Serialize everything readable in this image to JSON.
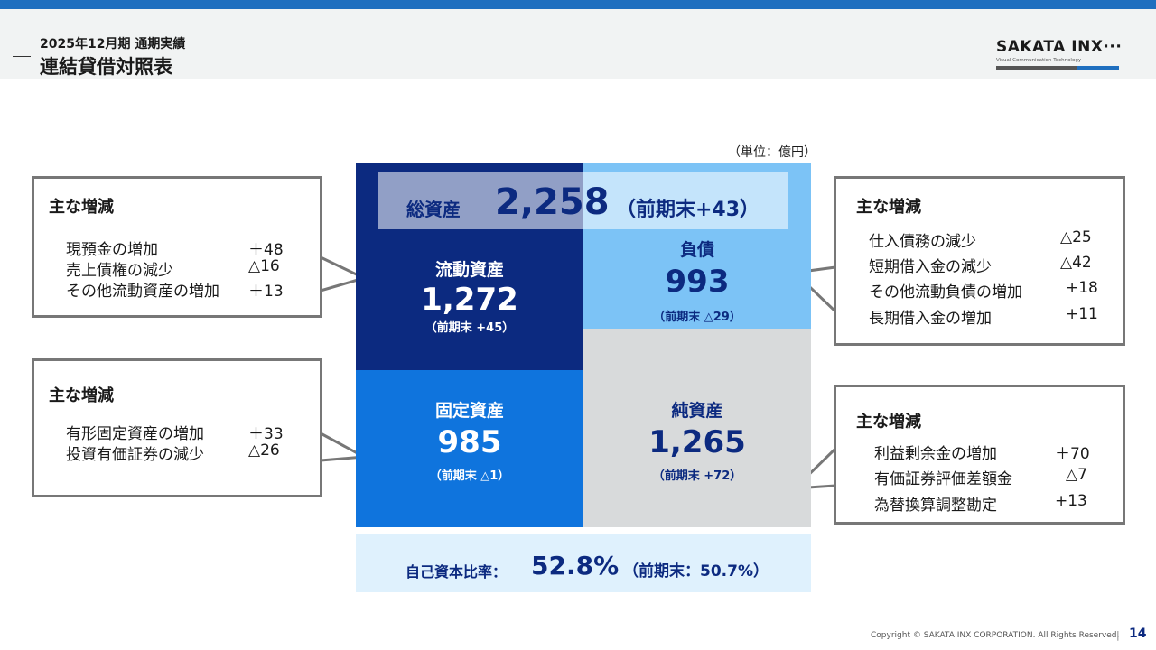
{
  "header": {
    "subtitle": "2025年12月期 通期実績",
    "title": "連結貸借対照表",
    "logo_name": "SAKATA INX···",
    "logo_tagline": "Visual Communication Technology"
  },
  "unit": "（単位：億円）",
  "total": {
    "label": "総資産",
    "value": "2,258",
    "prev": "（前期末+43）"
  },
  "current_assets": {
    "label": "流動資産",
    "value": "1,272",
    "prev": "（前期末 +45）"
  },
  "liabilities": {
    "label": "負債",
    "value": "993",
    "prev": "（前期末 △29）"
  },
  "fixed_assets": {
    "label": "固定資産",
    "value": "985",
    "prev": "（前期末 △1）"
  },
  "net_assets": {
    "label": "純資産",
    "value": "1,265",
    "prev": "（前期末 +72）"
  },
  "equity_ratio": {
    "label": "自己資本比率：",
    "value": "52.8%",
    "prev": "（前期末：50.7%）"
  },
  "callouts": {
    "current": {
      "title": "主な増減",
      "items": [
        {
          "label": "現預金の増加",
          "value": "＋48"
        },
        {
          "label": "売上債権の減少",
          "value": "△16"
        },
        {
          "label": "その他流動資産の増加",
          "value": "＋13"
        }
      ]
    },
    "fixed": {
      "title": "主な増減",
      "items": [
        {
          "label": "有形固定資産の増加",
          "value": "＋33"
        },
        {
          "label": "投資有価証券の減少",
          "value": "△26"
        }
      ]
    },
    "liabilities": {
      "title": "主な増減",
      "items": [
        {
          "label": "仕入債務の減少",
          "value": "△25"
        },
        {
          "label": "短期借入金の減少",
          "value": "△42"
        },
        {
          "label": "その他流動負債の増加",
          "value": "+18"
        },
        {
          "label": "長期借入金の増加",
          "value": "+11"
        }
      ]
    },
    "net_assets": {
      "title": "主な増減",
      "items": [
        {
          "label": "利益剰余金の増加",
          "value": "＋70"
        },
        {
          "label": "有価証券評価差額金",
          "value": "△7"
        },
        {
          "label": "為替換算調整勘定",
          "value": "+13"
        }
      ]
    }
  },
  "footer": {
    "copyright": "Copyright © SAKATA INX CORPORATION. All Rights Reserved.",
    "separator": "|",
    "page": "14"
  }
}
